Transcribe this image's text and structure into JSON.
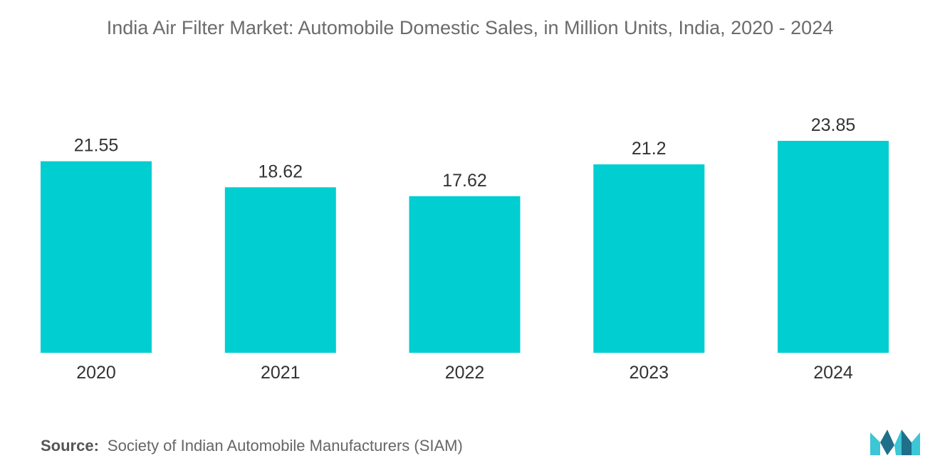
{
  "title": "India Air Filter Market: Automobile Domestic Sales, in Million Units, India, 2020 - 2024",
  "source": {
    "label": "Source:",
    "text": "Society of Indian Automobile Manufacturers (SIAM)"
  },
  "colors": {
    "bar": "#00CED1",
    "text": "#333333",
    "title": "#6b6b6b",
    "logo_dark": "#1f6f8b",
    "logo_light": "#3cc6d6"
  },
  "chart_data": {
    "type": "bar",
    "title": "India Air Filter Market: Automobile Domestic Sales, in Million Units, India, 2020 - 2024",
    "categories": [
      "2020",
      "2021",
      "2022",
      "2023",
      "2024"
    ],
    "values": [
      21.55,
      18.62,
      17.62,
      21.2,
      23.85
    ],
    "value_labels": [
      "21.55",
      "18.62",
      "17.62",
      "21.2",
      "23.85"
    ],
    "xlabel": "",
    "ylabel": "",
    "ylim": [
      0,
      23.85
    ],
    "grid": false,
    "legend": "none"
  }
}
